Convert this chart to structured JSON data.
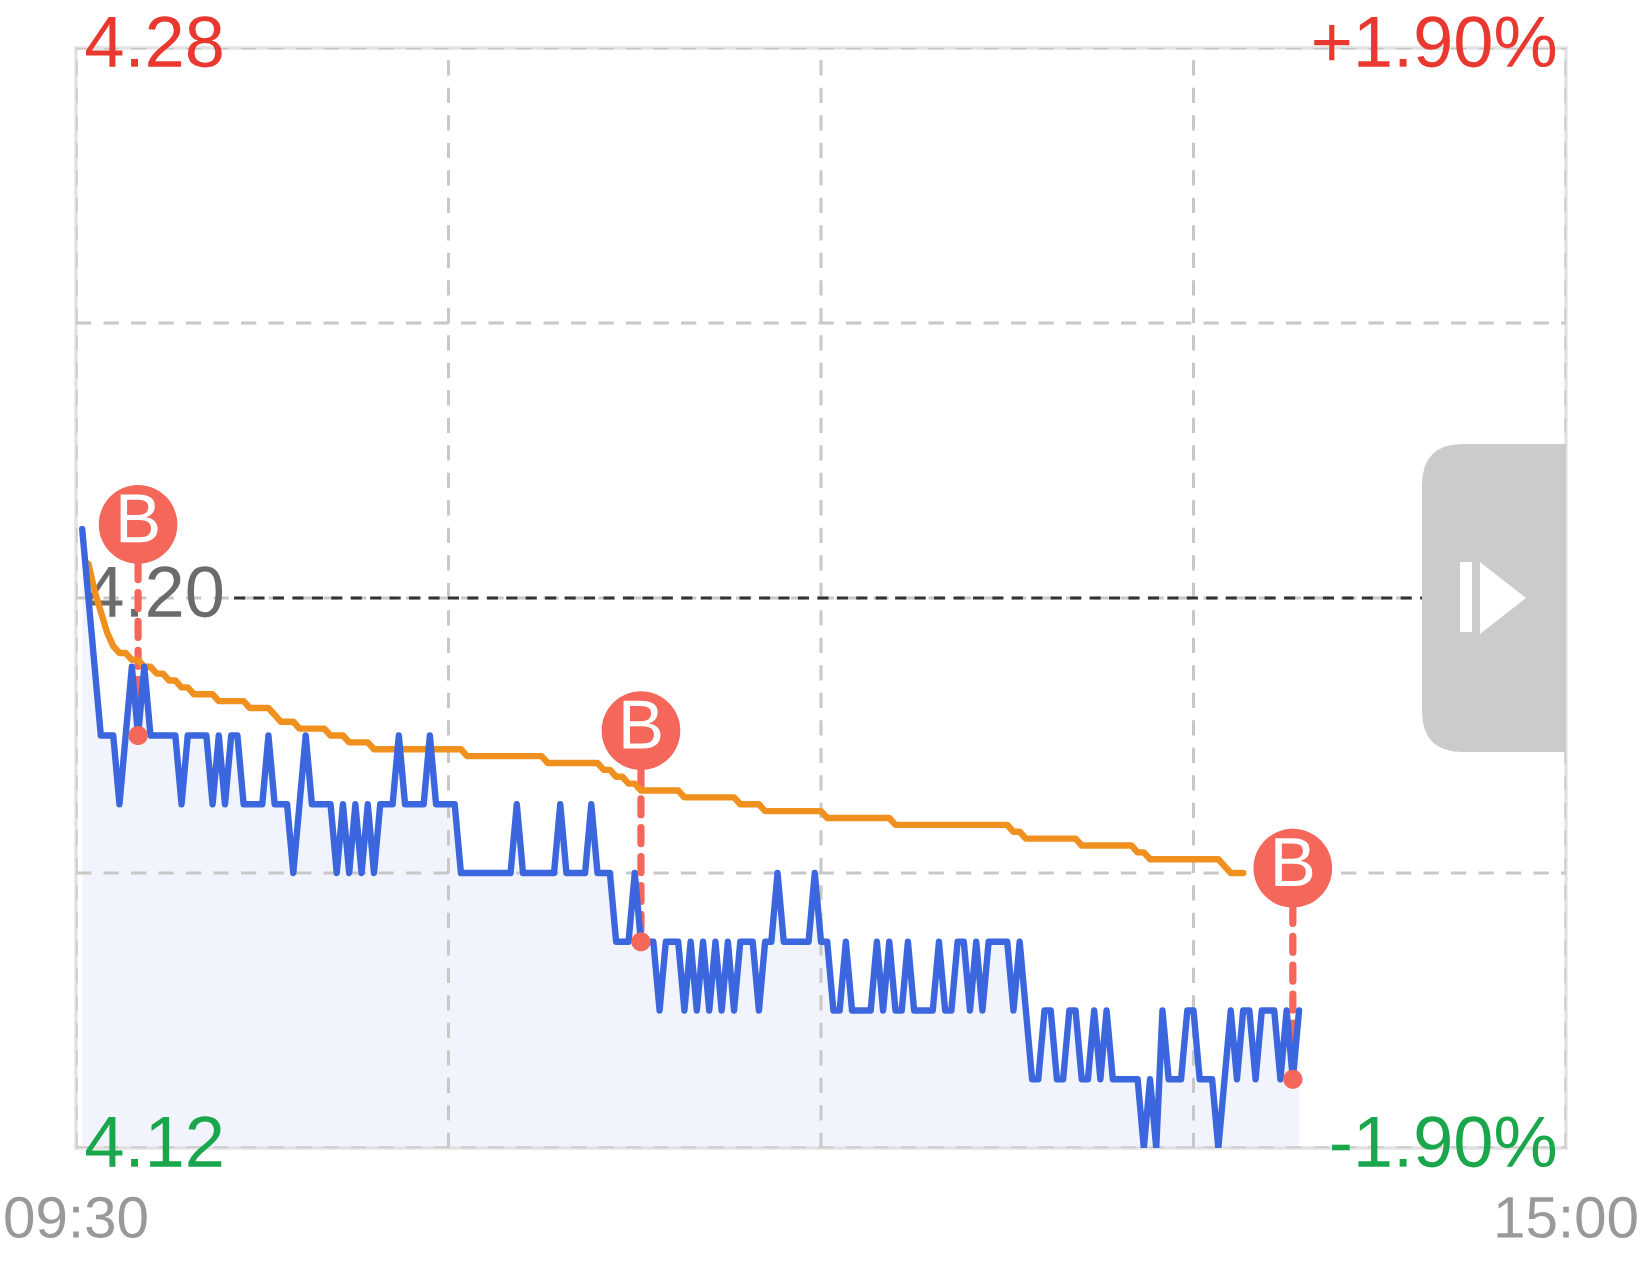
{
  "chart_data": {
    "type": "line",
    "categories": [
      "09:30",
      null,
      null,
      null,
      null,
      null,
      null,
      null,
      null,
      null,
      null,
      null,
      null,
      null,
      null,
      null,
      null,
      null,
      null,
      null,
      null,
      null,
      null,
      null,
      null,
      null,
      null,
      null,
      null,
      null,
      null,
      null,
      null,
      null,
      null,
      null,
      null,
      null,
      null,
      null,
      null,
      null,
      null,
      null,
      null,
      null,
      null,
      null,
      null,
      null,
      null,
      null,
      null,
      null,
      null,
      null,
      null,
      null,
      null,
      null,
      null,
      null,
      null,
      null,
      null,
      null,
      null,
      null,
      null,
      null,
      null,
      null,
      null,
      null,
      null,
      null,
      null,
      null,
      null,
      null,
      null,
      null,
      null,
      null,
      null,
      null,
      null,
      null,
      null,
      null,
      null,
      null,
      null,
      null,
      null,
      null,
      null,
      null,
      null,
      null,
      null,
      null,
      null,
      null,
      null,
      null,
      null,
      null,
      null,
      null,
      null,
      null,
      null,
      null,
      null,
      null,
      null,
      null,
      null,
      null,
      null,
      null,
      null,
      null,
      null,
      null,
      null,
      null,
      null,
      null,
      null,
      null,
      null,
      null,
      null,
      null,
      null,
      null,
      null,
      null,
      null,
      null,
      null,
      null,
      null,
      null,
      null,
      null,
      null,
      null,
      null,
      null,
      null,
      null,
      null,
      null,
      null,
      null,
      null,
      null,
      null,
      null,
      null,
      null,
      null,
      null,
      null,
      null,
      null,
      null,
      null,
      null,
      null,
      null,
      null,
      null,
      null,
      null,
      null,
      null,
      null,
      null,
      null,
      null,
      null,
      null,
      null,
      null,
      null,
      null,
      null,
      null,
      null,
      null,
      null,
      null,
      null,
      null,
      null,
      null,
      null,
      null,
      null,
      null,
      null,
      null,
      null,
      null,
      null,
      null,
      null,
      null,
      null,
      null,
      null,
      null,
      null,
      null,
      null,
      null,
      null,
      null,
      null,
      null,
      null,
      null,
      null,
      null,
      null,
      null,
      null,
      null,
      null,
      null,
      null,
      null,
      null,
      null,
      null,
      null,
      "15:00"
    ],
    "series": [
      {
        "type": "area",
        "color": "#3b66dd",
        "values": [
          null,
          4.21,
          4.2,
          4.19,
          4.18,
          4.18,
          4.18,
          4.17,
          4.18,
          4.19,
          4.18,
          4.19,
          4.18,
          4.18,
          4.18,
          4.18,
          4.18,
          4.17,
          4.18,
          4.18,
          4.18,
          4.18,
          4.17,
          4.18,
          4.17,
          4.18,
          4.18,
          4.17,
          4.17,
          4.17,
          4.17,
          4.18,
          4.17,
          4.17,
          4.17,
          4.16,
          4.17,
          4.18,
          4.17,
          4.17,
          4.17,
          4.17,
          4.16,
          4.17,
          4.16,
          4.17,
          4.16,
          4.17,
          4.16,
          4.17,
          4.17,
          4.17,
          4.18,
          4.17,
          4.17,
          4.17,
          4.17,
          4.18,
          4.17,
          4.17,
          4.17,
          4.17,
          4.16,
          4.16,
          4.16,
          4.16,
          4.16,
          4.16,
          4.16,
          4.16,
          4.16,
          4.17,
          4.16,
          4.16,
          4.16,
          4.16,
          4.16,
          4.16,
          4.17,
          4.16,
          4.16,
          4.16,
          4.16,
          4.17,
          4.16,
          4.16,
          4.16,
          4.15,
          4.15,
          4.15,
          4.16,
          4.15,
          4.15,
          4.15,
          4.14,
          4.15,
          4.15,
          4.15,
          4.14,
          4.15,
          4.14,
          4.15,
          4.14,
          4.15,
          4.14,
          4.15,
          4.14,
          4.15,
          4.15,
          4.15,
          4.14,
          4.15,
          4.15,
          4.16,
          4.15,
          4.15,
          4.15,
          4.15,
          4.15,
          4.16,
          4.15,
          4.15,
          4.14,
          4.14,
          4.15,
          4.14,
          4.14,
          4.14,
          4.14,
          4.15,
          4.14,
          4.15,
          4.14,
          4.14,
          4.15,
          4.14,
          4.14,
          4.14,
          4.14,
          4.15,
          4.14,
          4.14,
          4.15,
          4.15,
          4.14,
          4.15,
          4.14,
          4.15,
          4.15,
          4.15,
          4.15,
          4.14,
          4.15,
          4.14,
          4.13,
          4.13,
          4.14,
          4.14,
          4.13,
          4.13,
          4.14,
          4.14,
          4.13,
          4.13,
          4.14,
          4.13,
          4.14,
          4.13,
          4.13,
          4.13,
          4.13,
          4.13,
          4.12,
          4.13,
          4.12,
          4.14,
          4.13,
          4.13,
          4.13,
          4.14,
          4.14,
          4.13,
          4.13,
          4.13,
          4.12,
          4.13,
          4.14,
          4.13,
          4.14,
          4.14,
          4.13,
          4.14,
          4.14,
          4.14,
          4.13,
          4.14,
          4.13,
          4.14,
          null,
          null,
          null,
          null,
          null,
          null,
          null,
          null,
          null,
          null,
          null,
          null,
          null,
          null,
          null,
          null,
          null,
          null,
          null,
          null,
          null,
          null,
          null,
          null,
          null,
          null,
          null,
          null,
          null,
          null,
          null,
          null,
          null,
          null,
          null,
          null,
          null,
          null,
          null,
          null,
          null,
          null,
          null
        ]
      },
      {
        "color": "#f0901e",
        "values": [
          null,
          null,
          4.205,
          4.201,
          4.198,
          4.195,
          4.193,
          4.192,
          4.192,
          4.191,
          4.191,
          4.19,
          4.19,
          4.189,
          4.189,
          4.188,
          4.188,
          4.187,
          4.187,
          4.186,
          4.186,
          4.186,
          4.186,
          4.185,
          4.185,
          4.185,
          4.185,
          4.185,
          4.184,
          4.184,
          4.184,
          4.184,
          4.183,
          4.182,
          4.182,
          4.182,
          4.181,
          4.181,
          4.181,
          4.181,
          4.181,
          4.18,
          4.18,
          4.18,
          4.179,
          4.179,
          4.179,
          4.179,
          4.178,
          4.178,
          4.178,
          4.178,
          4.178,
          4.178,
          4.178,
          4.178,
          4.178,
          4.178,
          4.178,
          4.178,
          4.178,
          4.178,
          4.178,
          4.177,
          4.177,
          4.177,
          4.177,
          4.177,
          4.177,
          4.177,
          4.177,
          4.177,
          4.177,
          4.177,
          4.177,
          4.177,
          4.176,
          4.176,
          4.176,
          4.176,
          4.176,
          4.176,
          4.176,
          4.176,
          4.176,
          4.175,
          4.175,
          4.174,
          4.174,
          4.173,
          4.173,
          4.172,
          4.172,
          4.172,
          4.172,
          4.172,
          4.172,
          4.172,
          4.171,
          4.171,
          4.171,
          4.171,
          4.171,
          4.171,
          4.171,
          4.171,
          4.171,
          4.17,
          4.17,
          4.17,
          4.17,
          4.169,
          4.169,
          4.169,
          4.169,
          4.169,
          4.169,
          4.169,
          4.169,
          4.169,
          4.169,
          4.168,
          4.168,
          4.168,
          4.168,
          4.168,
          4.168,
          4.168,
          4.168,
          4.168,
          4.168,
          4.168,
          4.167,
          4.167,
          4.167,
          4.167,
          4.167,
          4.167,
          4.167,
          4.167,
          4.167,
          4.167,
          4.167,
          4.167,
          4.167,
          4.167,
          4.167,
          4.167,
          4.167,
          4.167,
          4.167,
          4.166,
          4.166,
          4.165,
          4.165,
          4.165,
          4.165,
          4.165,
          4.165,
          4.165,
          4.165,
          4.165,
          4.164,
          4.164,
          4.164,
          4.164,
          4.164,
          4.164,
          4.164,
          4.164,
          4.164,
          4.163,
          4.163,
          4.162,
          4.162,
          4.162,
          4.162,
          4.162,
          4.162,
          4.162,
          4.162,
          4.162,
          4.162,
          4.162,
          4.162,
          4.161,
          4.16,
          4.16,
          4.16,
          null,
          null,
          null,
          null,
          null,
          null,
          null,
          null,
          null,
          null,
          null,
          null,
          null,
          null,
          null,
          null,
          null,
          null,
          null,
          null,
          null,
          null,
          null,
          null,
          null,
          null,
          null,
          null,
          null,
          null,
          null,
          null,
          null,
          null,
          null,
          null,
          null,
          null,
          null,
          null,
          null,
          null,
          null,
          null,
          null,
          null,
          null,
          null,
          null,
          null,
          null,
          null
        ]
      },
      {
        "type": "scatter",
        "color": "#f4675a",
        "marker": "circle",
        "values": [
          null,
          null,
          null,
          null,
          null,
          null,
          null,
          null,
          null,
          null,
          4.18,
          null,
          null,
          null,
          null,
          null,
          null,
          null,
          null,
          null,
          null,
          null,
          null,
          null,
          null,
          null,
          null,
          null,
          null,
          null,
          null,
          null,
          null,
          null,
          null,
          null,
          null,
          null,
          null,
          null,
          null,
          null,
          null,
          null,
          null,
          null,
          null,
          null,
          null,
          null,
          null,
          null,
          null,
          null,
          null,
          null,
          null,
          null,
          null,
          null,
          null,
          null,
          null,
          null,
          null,
          null,
          null,
          null,
          null,
          null,
          null,
          null,
          null,
          null,
          null,
          null,
          null,
          null,
          null,
          null,
          null,
          null,
          null,
          null,
          null,
          null,
          null,
          null,
          null,
          null,
          null,
          4.15,
          null,
          null,
          null,
          null,
          null,
          null,
          null,
          null,
          null,
          null,
          null,
          null,
          null,
          null,
          null,
          null,
          null,
          null,
          null,
          null,
          null,
          null,
          null,
          null,
          null,
          null,
          null,
          null,
          null,
          null,
          null,
          null,
          null,
          null,
          null,
          null,
          null,
          null,
          null,
          null,
          null,
          null,
          null,
          null,
          null,
          null,
          null,
          null,
          null,
          null,
          null,
          null,
          null,
          null,
          null,
          null,
          null,
          null,
          null,
          null,
          null,
          null,
          null,
          null,
          null,
          null,
          null,
          null,
          null,
          null,
          null,
          null,
          null,
          null,
          null,
          null,
          null,
          null,
          null,
          null,
          null,
          null,
          null,
          null,
          null,
          null,
          null,
          null,
          null,
          null,
          null,
          null,
          null,
          null,
          null,
          null,
          null,
          null,
          null,
          null,
          null,
          null,
          null,
          null,
          4.13,
          null,
          null,
          null,
          null,
          null,
          null,
          null,
          null,
          null,
          null,
          null,
          null,
          null,
          null,
          null,
          null,
          null,
          null,
          null,
          null,
          null,
          null,
          null,
          null,
          null,
          null,
          null,
          null,
          null,
          null,
          null,
          null,
          null,
          null,
          null,
          null,
          null,
          null,
          null,
          null,
          null,
          null,
          null,
          null
        ],
        "value_labels": [
          null,
          null,
          null,
          null,
          null,
          null,
          null,
          null,
          null,
          null,
          "B",
          null,
          null,
          null,
          null,
          null,
          null,
          null,
          null,
          null,
          null,
          null,
          null,
          null,
          null,
          null,
          null,
          null,
          null,
          null,
          null,
          null,
          null,
          null,
          null,
          null,
          null,
          null,
          null,
          null,
          null,
          null,
          null,
          null,
          null,
          null,
          null,
          null,
          null,
          null,
          null,
          null,
          null,
          null,
          null,
          null,
          null,
          null,
          null,
          null,
          null,
          null,
          null,
          null,
          null,
          null,
          null,
          null,
          null,
          null,
          null,
          null,
          null,
          null,
          null,
          null,
          null,
          null,
          null,
          null,
          null,
          null,
          null,
          null,
          null,
          null,
          null,
          null,
          null,
          null,
          null,
          "B",
          null,
          null,
          null,
          null,
          null,
          null,
          null,
          null,
          null,
          null,
          null,
          null,
          null,
          null,
          null,
          null,
          null,
          null,
          null,
          null,
          null,
          null,
          null,
          null,
          null,
          null,
          null,
          null,
          null,
          null,
          null,
          null,
          null,
          null,
          null,
          null,
          null,
          null,
          null,
          null,
          null,
          null,
          null,
          null,
          null,
          null,
          null,
          null,
          null,
          null,
          null,
          null,
          null,
          null,
          null,
          null,
          null,
          null,
          null,
          null,
          null,
          null,
          null,
          null,
          null,
          null,
          null,
          null,
          null,
          null,
          null,
          null,
          null,
          null,
          null,
          null,
          null,
          null,
          null,
          null,
          null,
          null,
          null,
          null,
          null,
          null,
          null,
          null,
          null,
          null,
          null,
          null,
          null,
          null,
          null,
          null,
          null,
          null,
          null,
          null,
          null,
          null,
          null,
          null,
          "B",
          null,
          null,
          null,
          null,
          null,
          null,
          null,
          null,
          null,
          null,
          null,
          null,
          null,
          null,
          null,
          null,
          null,
          null,
          null,
          null,
          null,
          null,
          null,
          null,
          null,
          null,
          null,
          null,
          null,
          null,
          null,
          null,
          null,
          null,
          null,
          null,
          null,
          null,
          null,
          null,
          null,
          null,
          null,
          null
        ]
      }
    ],
    "ylim": [
      4.12,
      4.28
    ],
    "yticks": [
      4.12,
      {
        "value": 4.16,
        "label": null
      },
      {
        "value": 4.2,
        "label": "4.20"
      },
      {
        "value": 4.24,
        "label": null
      },
      4.28
    ],
    "y2lim": [
      -1.9,
      1.9
    ],
    "y2ticks": [
      {
        "value": -1.9,
        "label": "-1.90%"
      },
      {
        "value": 1.9,
        "label": "+1.90%"
      }
    ],
    "ref_lines": [
      {
        "axis": "y",
        "value": 4.2,
        "color": "#333333",
        "line_style": "dashed"
      }
    ],
    "grid": true
  }
}
